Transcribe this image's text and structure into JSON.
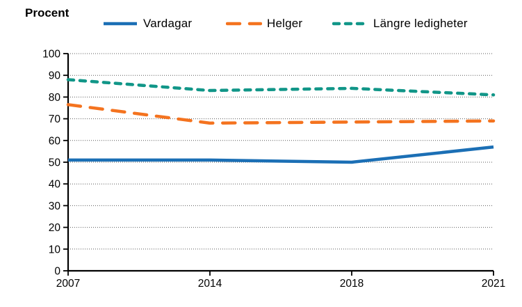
{
  "chart_data": {
    "type": "line",
    "title": "Procent",
    "categories": [
      "2007",
      "2014",
      "2018",
      "2021"
    ],
    "xticklabels": [
      "2007",
      "2014",
      "2018",
      "2021"
    ],
    "yticklabels": [
      "0",
      "10",
      "20",
      "30",
      "40",
      "50",
      "60",
      "70",
      "80",
      "90",
      "100"
    ],
    "series": [
      {
        "name": "Vardagar",
        "color": "#1b6fb5",
        "style": "solid",
        "values": [
          51,
          51,
          50,
          57
        ]
      },
      {
        "name": "Helger",
        "color": "#f4731f",
        "style": "long-dash",
        "values": [
          76.5,
          68,
          68.5,
          69
        ]
      },
      {
        "name": "Längre ledigheter",
        "color": "#119688",
        "style": "short-dash",
        "values": [
          88,
          83,
          84,
          81
        ]
      }
    ],
    "ylabel": "Procent",
    "ylim": [
      0,
      100
    ],
    "ytick_step": 10,
    "grid": "horizontal-dotted",
    "legend_position": "top",
    "colors": {
      "grid": "#595959",
      "axis": "#000000",
      "background": "#ffffff"
    }
  }
}
